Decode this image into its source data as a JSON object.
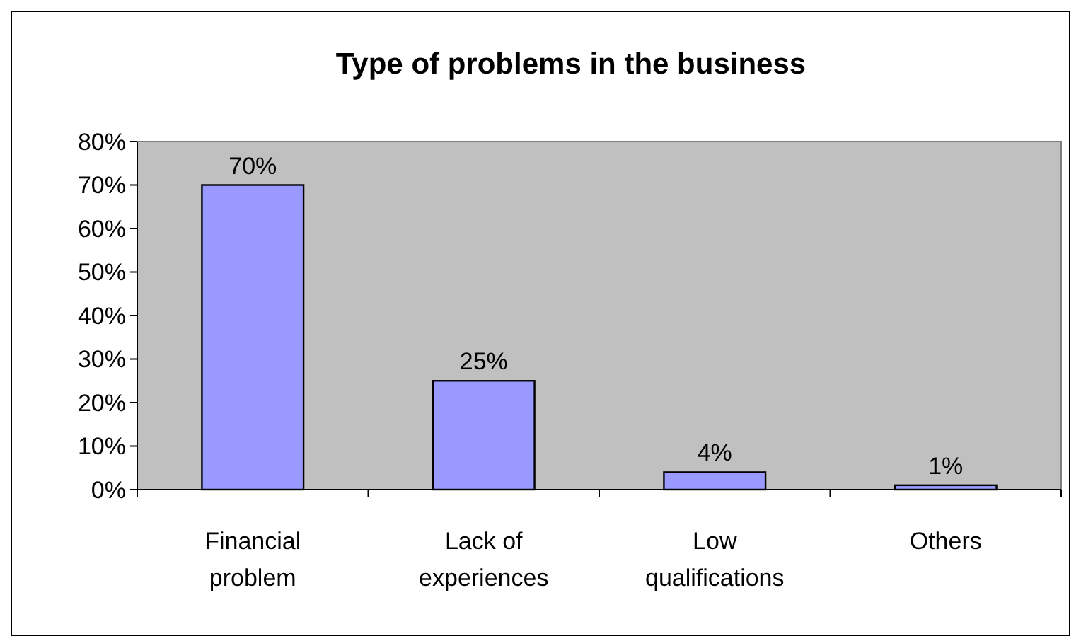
{
  "chart_data": {
    "type": "bar",
    "title": "Type of problems in the business",
    "categories": [
      "Financial problem",
      "Lack of experiences",
      "Low qualifications",
      "Others"
    ],
    "values": [
      70,
      25,
      4,
      1
    ],
    "color": "#9999ff",
    "value_labels": [
      "70%",
      "25%",
      "4%",
      "1%"
    ],
    "ylim": [
      0,
      80
    ],
    "yticks": [
      {
        "value": 0,
        "label": "0%"
      },
      {
        "value": 10,
        "label": "10%"
      },
      {
        "value": 20,
        "label": "20%"
      },
      {
        "value": 30,
        "label": "30%"
      },
      {
        "value": 40,
        "label": "40%"
      },
      {
        "value": 50,
        "label": "50%"
      },
      {
        "value": 60,
        "label": "60%"
      },
      {
        "value": 70,
        "label": "70%"
      },
      {
        "value": 80,
        "label": "80%"
      }
    ],
    "grid": false
  }
}
